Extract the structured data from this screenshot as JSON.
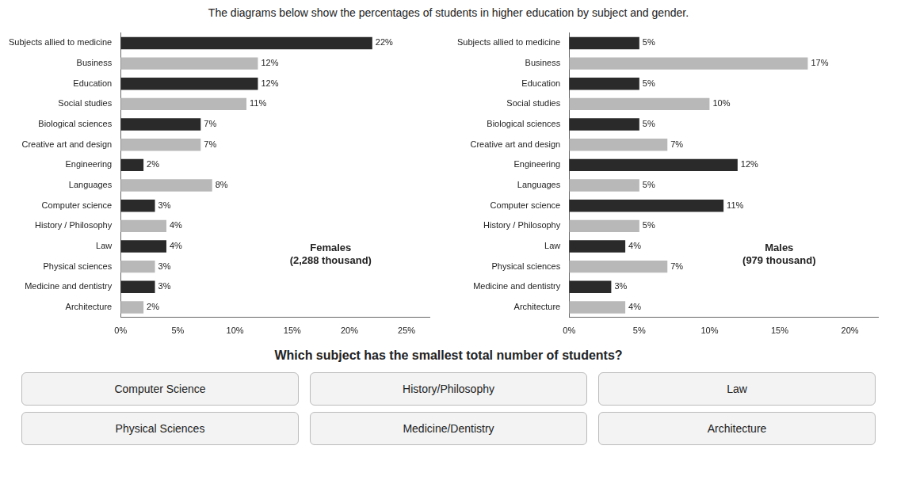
{
  "title": "The diagrams below show the percentages of students in higher education by subject and gender.",
  "annotations": [
    "Which subject has the smallest total number of students?",
    "Computer Science",
    "History/Philosophy",
    "Law",
    "Physical Sciences",
    "Medicine/Dentistry",
    "Architecture"
  ],
  "chart_data": [
    {
      "type": "bar",
      "orientation": "horizontal",
      "data_labels": true,
      "grid": false,
      "annotations": [
        "Females\n(2,288 thousand)"
      ],
      "categories": [
        "Subjects allied to medicine",
        "Business",
        "Education",
        "Social studies",
        "Biological sciences",
        "Creative art and design",
        "Engineering",
        "Languages",
        "Computer science",
        "History / Philosophy",
        "Law",
        "Physical sciences",
        "Medicine and dentistry",
        "Architecture"
      ],
      "values": [
        22,
        12,
        12,
        11,
        7,
        7,
        2,
        8,
        3,
        4,
        4,
        3,
        3,
        2
      ],
      "value_labels": [
        "22%",
        "12%",
        "12%",
        "11%",
        "7%",
        "7%",
        "2%",
        "8%",
        "3%",
        "4%",
        "4%",
        "3%",
        "3%",
        "2%"
      ],
      "colors": [
        "#2a2a2a",
        "#b8b8b8",
        "#2a2a2a",
        "#b8b8b8",
        "#2a2a2a",
        "#b8b8b8",
        "#2a2a2a",
        "#b8b8b8",
        "#2a2a2a",
        "#b8b8b8",
        "#2a2a2a",
        "#b8b8b8",
        "#2a2a2a",
        "#b8b8b8"
      ],
      "xlim": [
        0,
        27
      ],
      "xticks": [
        {
          "value": 0,
          "label": "0%"
        },
        {
          "value": 5,
          "label": "5%"
        },
        {
          "value": 10,
          "label": "10%"
        },
        {
          "value": 15,
          "label": "15%"
        },
        {
          "value": 20,
          "label": "20%"
        },
        {
          "value": 25,
          "label": "25%"
        }
      ]
    },
    {
      "type": "bar",
      "orientation": "horizontal",
      "data_labels": true,
      "grid": false,
      "annotations": [
        "Males\n(979 thousand)"
      ],
      "categories": [
        "Subjects allied to medicine",
        "Business",
        "Education",
        "Social studies",
        "Biological sciences",
        "Creative art and design",
        "Engineering",
        "Languages",
        "Computer science",
        "History / Philosophy",
        "Law",
        "Physical sciences",
        "Medicine and dentistry",
        "Architecture"
      ],
      "values": [
        5,
        17,
        5,
        10,
        5,
        7,
        12,
        5,
        11,
        5,
        4,
        7,
        3,
        4
      ],
      "value_labels": [
        "5%",
        "17%",
        "5%",
        "10%",
        "5%",
        "7%",
        "12%",
        "5%",
        "11%",
        "5%",
        "4%",
        "7%",
        "3%",
        "4%"
      ],
      "colors": [
        "#2a2a2a",
        "#b8b8b8",
        "#2a2a2a",
        "#b8b8b8",
        "#2a2a2a",
        "#b8b8b8",
        "#2a2a2a",
        "#b8b8b8",
        "#2a2a2a",
        "#b8b8b8",
        "#2a2a2a",
        "#b8b8b8",
        "#2a2a2a",
        "#b8b8b8"
      ],
      "xlim": [
        0,
        22
      ],
      "xticks": [
        {
          "value": 0,
          "label": "0%"
        },
        {
          "value": 5,
          "label": "5%"
        },
        {
          "value": 10,
          "label": "10%"
        },
        {
          "value": 15,
          "label": "15%"
        },
        {
          "value": 20,
          "label": "20%"
        }
      ]
    }
  ]
}
